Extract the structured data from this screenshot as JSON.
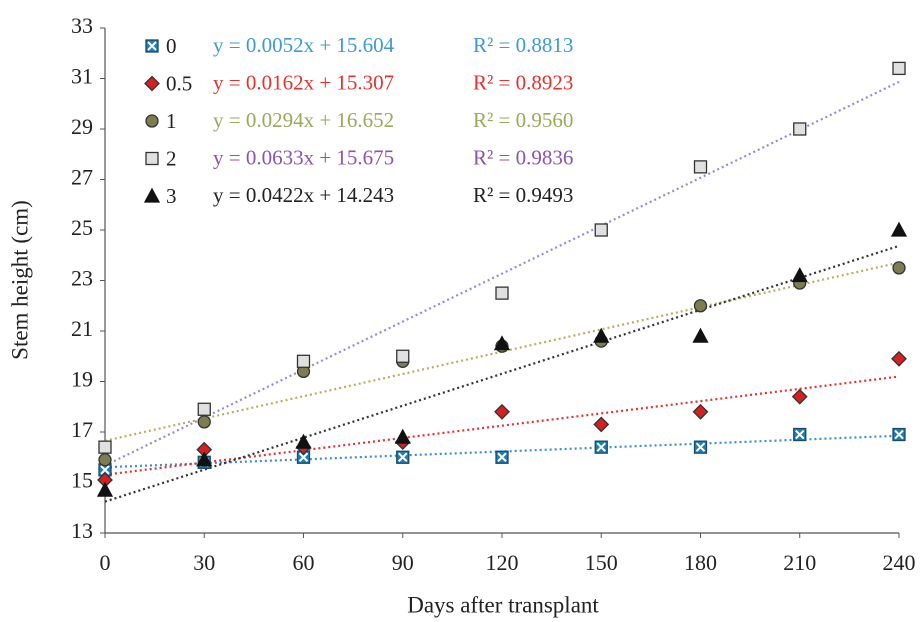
{
  "chart_data": {
    "type": "scatter",
    "xlabel": "Days after transplant",
    "ylabel": "Stem height (cm)",
    "xlim": [
      0,
      240
    ],
    "xticks": [
      0,
      30,
      60,
      90,
      120,
      150,
      180,
      210,
      240
    ],
    "ylim": [
      13,
      33
    ],
    "yticks": [
      13,
      15,
      17,
      19,
      21,
      23,
      25,
      27,
      29,
      31,
      33
    ],
    "x": [
      0,
      30,
      60,
      90,
      120,
      150,
      180,
      210,
      240
    ],
    "series": [
      {
        "name": "0",
        "marker": "xsquare",
        "color": "#1f7fb5",
        "line_color": "#3a8fd8",
        "label_color": "#3d9ad8",
        "values": [
          15.5,
          15.8,
          16.0,
          16.0,
          16.0,
          16.4,
          16.4,
          16.9,
          16.9
        ],
        "trendline": {
          "slope": 0.0052,
          "intercept": 15.604,
          "label": "y = 0.0052x + 15.604",
          "r2_label": "R² = 0.8813"
        }
      },
      {
        "name": "0.5",
        "marker": "diamond",
        "color": "#d42020",
        "line_color": "#e83030",
        "label_color": "#e8302c",
        "values": [
          15.1,
          16.3,
          16.4,
          16.6,
          17.8,
          17.3,
          17.8,
          18.4,
          19.9
        ],
        "trendline": {
          "slope": 0.0162,
          "intercept": 15.307,
          "label": "y = 0.0162x + 15.307",
          "r2_label": "R² = 0.8923"
        }
      },
      {
        "name": "1",
        "marker": "circle",
        "color": "#7d7d50",
        "line_color": "#b5b060",
        "label_color": "#9aaa5a",
        "values": [
          15.9,
          17.4,
          19.4,
          19.8,
          20.4,
          20.6,
          22.0,
          22.9,
          23.5
        ],
        "trendline": {
          "slope": 0.0294,
          "intercept": 16.652,
          "label": "y = 0.0294x + 16.652",
          "r2_label": "R² = 0.9560"
        }
      },
      {
        "name": "2",
        "marker": "square",
        "color": "#e0e0e0",
        "line_color": "#9a8ad0",
        "label_color": "#8a54b0",
        "values": [
          16.4,
          17.9,
          19.8,
          20.0,
          22.5,
          25.0,
          27.5,
          29.0,
          31.4
        ],
        "trendline": {
          "slope": 0.0633,
          "intercept": 15.675,
          "label": "y = 0.0633x + 15.675",
          "r2_label": "R² = 0.9836"
        }
      },
      {
        "name": "3",
        "marker": "triangle",
        "color": "#111111",
        "line_color": "#333333",
        "label_color": "#222222",
        "values": [
          14.7,
          15.9,
          16.6,
          16.8,
          20.5,
          20.8,
          20.8,
          23.2,
          25.0
        ],
        "trendline": {
          "slope": 0.0422,
          "intercept": 14.243,
          "label": "y = 0.0422x + 14.243",
          "r2_label": "R² = 0.9493"
        }
      }
    ]
  }
}
